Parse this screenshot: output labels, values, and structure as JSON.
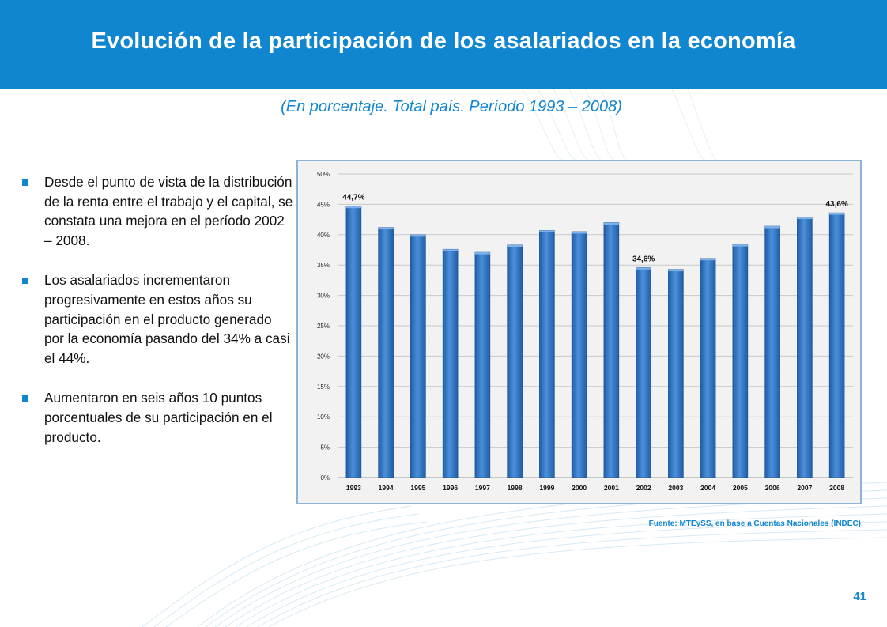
{
  "header": {
    "title": "Evolución de la participación de los asalariados en la economía"
  },
  "subtitle": "(En porcentaje. Total país. Período 1993 – 2008)",
  "bullets": [
    "Desde el punto de vista de la distribución de la renta entre el trabajo y el capital, se constata una mejora en el período 2002 – 2008.",
    "Los asalariados incrementaron progresivamente en estos años su participación en el producto generado por la economía pasando del 34% a casi el 44%.",
    "Aumentaron en seis años 10 puntos porcentuales de su participación en el producto."
  ],
  "source": "Fuente: MTEySS, en base a Cuentas Nacionales (INDEC)",
  "page_number": "41",
  "colors": {
    "brand": "#1186d0",
    "bar_dark": "#1f5ea8",
    "bar_light": "#4d8fd9",
    "chart_border": "#8cb3d9"
  },
  "chart_data": {
    "type": "bar",
    "title": "",
    "xlabel": "",
    "ylabel": "",
    "categories": [
      "1993",
      "1994",
      "1995",
      "1996",
      "1997",
      "1998",
      "1999",
      "2000",
      "2001",
      "2002",
      "2003",
      "2004",
      "2005",
      "2006",
      "2007",
      "2008"
    ],
    "values": [
      44.7,
      41.2,
      40.0,
      37.6,
      37.1,
      38.3,
      40.7,
      40.5,
      42.0,
      34.6,
      34.3,
      36.1,
      38.4,
      41.4,
      42.9,
      43.6
    ],
    "ylim": [
      0,
      50
    ],
    "y_ticks": [
      0,
      5,
      10,
      15,
      20,
      25,
      30,
      35,
      40,
      45,
      50
    ],
    "y_tick_labels": [
      "0%",
      "5%",
      "10%",
      "15%",
      "20%",
      "25%",
      "30%",
      "35%",
      "40%",
      "45%",
      "50%"
    ],
    "grid": true,
    "annotations": [
      {
        "category": "1993",
        "label": "44,7%"
      },
      {
        "category": "2002",
        "label": "34,6%"
      },
      {
        "category": "2008",
        "label": "43,6%"
      }
    ]
  }
}
